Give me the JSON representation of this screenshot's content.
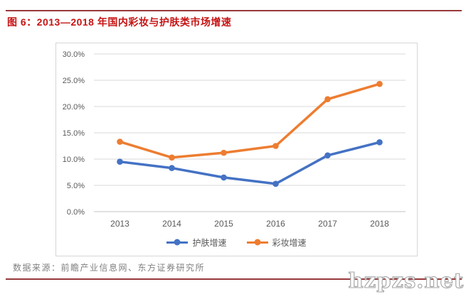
{
  "title": "图 6：2013—2018 年国内彩妆与护肤类市场增速",
  "footer": "数据来源：前瞻产业信息网、东方证券研究所",
  "watermark": "hzpzs.net",
  "colors": {
    "title_red": "#c61414",
    "rule_red": "#97393a",
    "skincare_blue": "#4472c4",
    "makeup_orange": "#ed7d31",
    "grid_gray": "#d9d9d9",
    "axis_text_gray": "#595959",
    "box_border_gray": "#d6d6d6"
  },
  "chart_data": {
    "type": "line",
    "categories": [
      "2013",
      "2014",
      "2015",
      "2016",
      "2017",
      "2018"
    ],
    "series": [
      {
        "name": "护肤增速",
        "color_key": "skincare_blue",
        "values": [
          9.5,
          8.3,
          6.5,
          5.3,
          10.7,
          13.2
        ]
      },
      {
        "name": "彩妆增速",
        "color_key": "makeup_orange",
        "values": [
          13.3,
          10.3,
          11.2,
          12.5,
          21.4,
          24.3
        ]
      }
    ],
    "ylim": [
      0,
      30
    ],
    "ytick_step": 5,
    "ytick_labels": [
      "0.0%",
      "5.0%",
      "10.0%",
      "15.0%",
      "20.0%",
      "25.0%",
      "30.0%"
    ],
    "unit": "percent",
    "grid": true,
    "legend_position": "bottom",
    "marker": "circle"
  }
}
